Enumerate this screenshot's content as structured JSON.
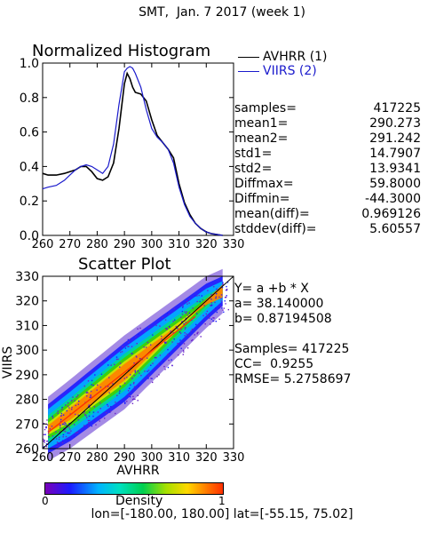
{
  "title": "SMT,  Jan. 7 2017 (week 1)",
  "histogram": {
    "title": "Normalized Histogram",
    "legend": [
      {
        "label": "AVHRR (1)",
        "color": "#000000"
      },
      {
        "label": "VIIRS (2)",
        "color": "#1a1acc"
      }
    ],
    "stats": [
      {
        "label": "samples=",
        "value": "417225"
      },
      {
        "label": "mean1=",
        "value": "290.273"
      },
      {
        "label": "mean2=",
        "value": "291.242"
      },
      {
        "label": "std1=",
        "value": "14.7907"
      },
      {
        "label": "std2=",
        "value": "13.9341"
      },
      {
        "label": "Diffmax=",
        "value": "59.8000"
      },
      {
        "label": "Diffmin=",
        "value": "-44.3000"
      },
      {
        "label": "mean(diff)=",
        "value": "0.969126"
      },
      {
        "label": "stddev(diff)=",
        "value": "5.60557"
      }
    ]
  },
  "scatter": {
    "title": "Scatter Plot",
    "equation": "Y= a +b * X",
    "a": "a= 38.140000",
    "b": "b= 0.87194508",
    "samples": "Samples= 417225",
    "cc": "CC=  0.9255",
    "rmse": "RMSE= 5.2758697"
  },
  "colorbar": {
    "label": "Density",
    "min": "0",
    "max": "1"
  },
  "footer": "lon=[-180.00, 180.00] lat=[-55.15, 75.02]",
  "chart_data": [
    {
      "type": "line",
      "title": "Normalized Histogram",
      "xlim": [
        260,
        330
      ],
      "ylim": [
        0,
        1.0
      ],
      "x_ticks": [
        "260",
        "270",
        "280",
        "290",
        "300",
        "310",
        "320",
        "330"
      ],
      "y_ticks": [
        "0.0",
        "0.2",
        "0.4",
        "0.6",
        "0.8",
        "1.0"
      ],
      "series": [
        {
          "name": "AVHRR (1)",
          "color": "#000000",
          "x": [
            260,
            262,
            265,
            268,
            270,
            272,
            274,
            276,
            278,
            280,
            282,
            284,
            286,
            288,
            290,
            291,
            292,
            293,
            294,
            296,
            298,
            300,
            302,
            304,
            306,
            308,
            310,
            312,
            314,
            316,
            318,
            320,
            322,
            324,
            326
          ],
          "y": [
            0.36,
            0.35,
            0.35,
            0.36,
            0.37,
            0.38,
            0.4,
            0.4,
            0.37,
            0.33,
            0.32,
            0.34,
            0.42,
            0.62,
            0.88,
            0.94,
            0.91,
            0.86,
            0.83,
            0.82,
            0.78,
            0.67,
            0.58,
            0.54,
            0.5,
            0.45,
            0.3,
            0.19,
            0.12,
            0.07,
            0.04,
            0.02,
            0.01,
            0.005,
            0.0
          ]
        },
        {
          "name": "VIIRS (2)",
          "color": "#1a1acc",
          "x": [
            260,
            262,
            265,
            268,
            270,
            272,
            274,
            276,
            278,
            280,
            282,
            284,
            286,
            288,
            290,
            291,
            292,
            293,
            294,
            296,
            298,
            300,
            302,
            304,
            306,
            308,
            310,
            312,
            314,
            316,
            318,
            320,
            322,
            324,
            326
          ],
          "y": [
            0.27,
            0.28,
            0.29,
            0.32,
            0.35,
            0.38,
            0.4,
            0.41,
            0.4,
            0.38,
            0.36,
            0.4,
            0.53,
            0.76,
            0.95,
            0.97,
            0.98,
            0.97,
            0.94,
            0.86,
            0.73,
            0.62,
            0.57,
            0.54,
            0.5,
            0.42,
            0.28,
            0.18,
            0.11,
            0.07,
            0.04,
            0.02,
            0.01,
            0.005,
            0.0
          ]
        }
      ]
    },
    {
      "type": "scatter",
      "title": "Scatter Plot",
      "xlabel": "AVHRR",
      "ylabel": "VIIRS",
      "xlim": [
        260,
        330
      ],
      "ylim": [
        260,
        330
      ],
      "x_ticks": [
        "260",
        "270",
        "280",
        "290",
        "300",
        "310",
        "320",
        "330"
      ],
      "y_ticks": [
        "260",
        "270",
        "280",
        "290",
        "300",
        "310",
        "320",
        "330"
      ],
      "regression": {
        "a": 38.14,
        "b": 0.87194508,
        "x": [
          262,
          316
        ],
        "color": "#ff3000"
      },
      "one_to_one": {
        "x": [
          260,
          330
        ],
        "color": "#000000"
      },
      "density_band": [
        {
          "x": 262,
          "y_low": 261,
          "y_high": 275
        },
        {
          "x": 270,
          "y_low": 266,
          "y_high": 282
        },
        {
          "x": 280,
          "y_low": 274,
          "y_high": 291
        },
        {
          "x": 290,
          "y_low": 282,
          "y_high": 300
        },
        {
          "x": 300,
          "y_low": 293,
          "y_high": 308
        },
        {
          "x": 310,
          "y_low": 304,
          "y_high": 316
        },
        {
          "x": 320,
          "y_low": 315,
          "y_high": 324
        },
        {
          "x": 326,
          "y_low": 321,
          "y_high": 327
        }
      ]
    }
  ]
}
